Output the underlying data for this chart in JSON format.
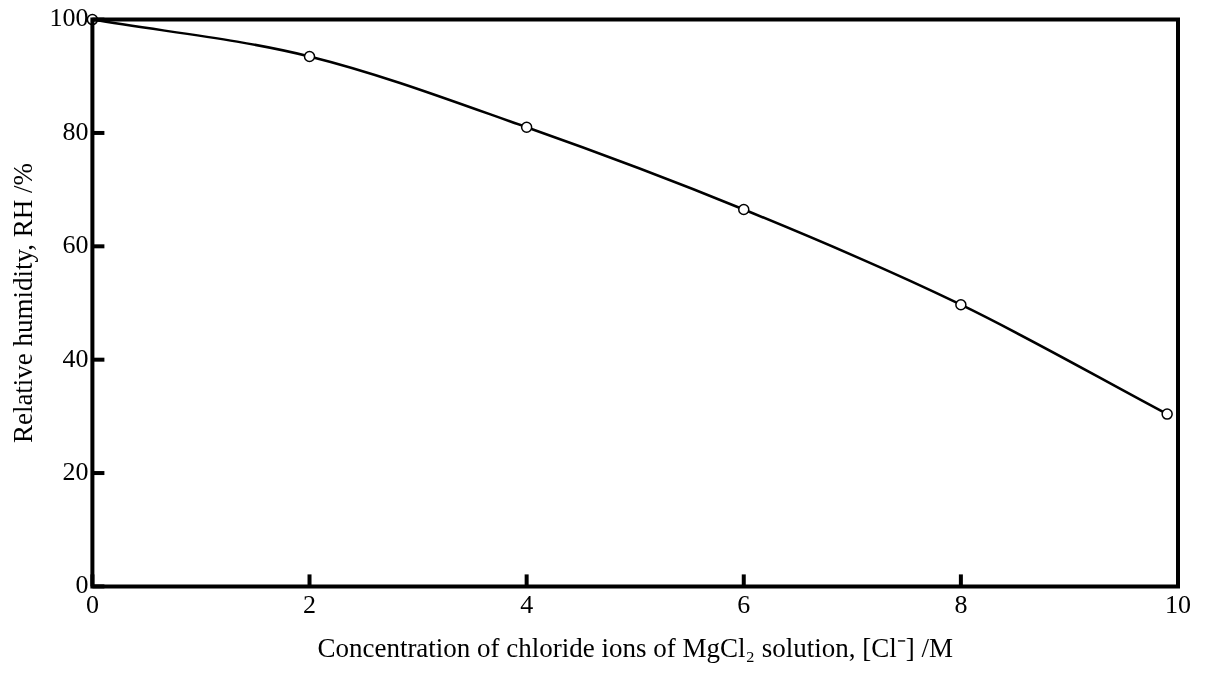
{
  "chart_data": {
    "type": "line",
    "xlabel": "Concentration of chloride ions of MgCl₂ solution, [Cl⁻] /M",
    "ylabel": "Relative humidity, RH /%",
    "x": [
      0,
      2,
      4,
      6,
      8,
      9.9
    ],
    "series": [
      {
        "color": "#000000",
        "values": [
          100,
          93.5,
          81,
          66.5,
          49.7,
          30.4
        ]
      }
    ],
    "xlim": [
      0,
      10
    ],
    "xticks": [
      0,
      2,
      4,
      6,
      8,
      10
    ],
    "ylim": [
      0,
      100
    ],
    "yticks": [
      0,
      20,
      40,
      60,
      80,
      100
    ],
    "grid": false,
    "legend": false,
    "marker": "circle",
    "line_style": "solid"
  }
}
